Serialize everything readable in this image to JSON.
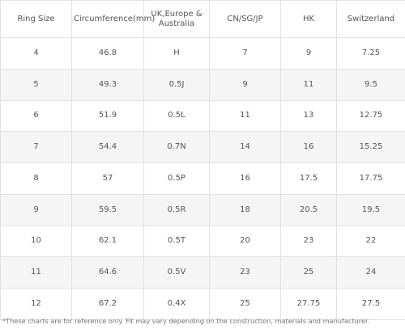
{
  "table": {
    "headers": [
      "Ring Size",
      "Circumference(mm)",
      "UK,Europe & Australia",
      "CN/SG/JP",
      "HK",
      "Switzerland"
    ],
    "rows": [
      [
        "4",
        "46.8",
        "H",
        "7",
        "9",
        "7.25"
      ],
      [
        "5",
        "49.3",
        "0.5J",
        "9",
        "11",
        "9.5"
      ],
      [
        "6",
        "51.9",
        "0.5L",
        "11",
        "13",
        "12.75"
      ],
      [
        "7",
        "54.4",
        "0.7N",
        "14",
        "16",
        "15.25"
      ],
      [
        "8",
        "57",
        "0.5P",
        "16",
        "17.5",
        "17.75"
      ],
      [
        "9",
        "59.5",
        "0.5R",
        "18",
        "20.5",
        "19.5"
      ],
      [
        "10",
        "62.1",
        "0.5T",
        "20",
        "23",
        "22"
      ],
      [
        "11",
        "64.6",
        "0.5V",
        "23",
        "25",
        "24"
      ],
      [
        "12",
        "67.2",
        "0.4X",
        "25",
        "27.75",
        "27.5"
      ]
    ]
  },
  "footnote": "*These charts are for reference only. Fit may vary depending on the construction, materials and manufacturer.",
  "colors": {
    "border": "#e2e2e2",
    "stripe": "#f5f5f5",
    "text": "#555555"
  }
}
